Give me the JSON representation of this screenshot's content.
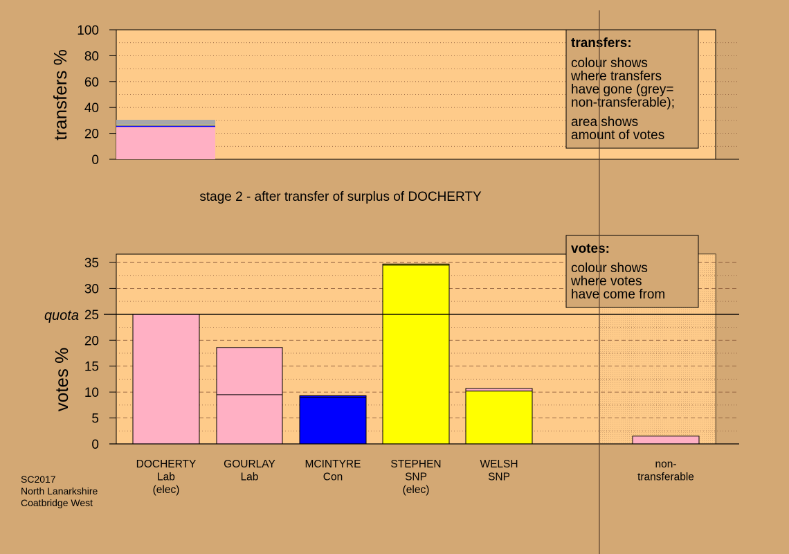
{
  "chart_data": [
    {
      "type": "bar",
      "ylabel": "transfers %",
      "ylim": [
        0,
        100
      ],
      "yticks": [
        0,
        20,
        40,
        60,
        80,
        100
      ],
      "bars": [
        {
          "segments": [
            {
              "value": 25.0,
              "color": "#ffb0c4"
            },
            {
              "value": 1.0,
              "color": "#0000ff"
            },
            {
              "value": 0.5,
              "color": "#ffff00"
            },
            {
              "value": 4.0,
              "color": "#a8a8a8"
            }
          ]
        }
      ],
      "legend": {
        "title": "transfers:",
        "lines1": [
          "colour shows",
          "where transfers",
          "have gone (grey=",
          "non-transferable);"
        ],
        "lines2": [
          "area shows",
          "amount of votes"
        ]
      }
    },
    {
      "type": "bar",
      "ylabel": "votes %",
      "ylim": [
        0,
        35
      ],
      "yticks": [
        0,
        5,
        10,
        15,
        20,
        25,
        30,
        35
      ],
      "quota": {
        "value": 25,
        "label": "quota"
      },
      "categories": [
        {
          "lines": [
            "DOCHERTY",
            "Lab",
            "(elec)"
          ],
          "segments": [
            {
              "value": 25.0,
              "color": "#ffb0c4"
            }
          ]
        },
        {
          "lines": [
            "GOURLAY",
            "Lab"
          ],
          "segments": [
            {
              "value": 9.5,
              "color": "#ffb0c4"
            },
            {
              "value": 9.1,
              "color": "#ffb0c4"
            }
          ]
        },
        {
          "lines": [
            "MCINTYRE",
            "Con"
          ],
          "segments": [
            {
              "value": 9.0,
              "color": "#0000ff"
            },
            {
              "value": 0.3,
              "color": "#0000ff"
            }
          ]
        },
        {
          "lines": [
            "STEPHEN",
            "SNP",
            "(elec)"
          ],
          "segments": [
            {
              "value": 34.5,
              "color": "#ffff00"
            },
            {
              "value": 0.2,
              "color": "#ffff00"
            }
          ]
        },
        {
          "lines": [
            "WELSH",
            "SNP"
          ],
          "segments": [
            {
              "value": 10.2,
              "color": "#ffff00"
            },
            {
              "value": 0.5,
              "color": "#ffb0c4"
            }
          ]
        }
      ],
      "nontransferable": {
        "lines": [
          "non-",
          "transferable"
        ],
        "segments": [
          {
            "value": 1.5,
            "color": "#ffb0c4"
          }
        ]
      },
      "legend": {
        "title": "votes:",
        "lines1": [
          "colour shows",
          "where votes",
          "have come from"
        ]
      }
    }
  ],
  "stage_caption": "stage 2 - after transfer of surplus of DOCHERTY",
  "footer": [
    "SC2017",
    "North Lanarkshire",
    "Coatbridge West"
  ],
  "colors": {
    "background": "#d3a874",
    "plot": "#fecb8a",
    "grid": "#8a5a3a"
  }
}
